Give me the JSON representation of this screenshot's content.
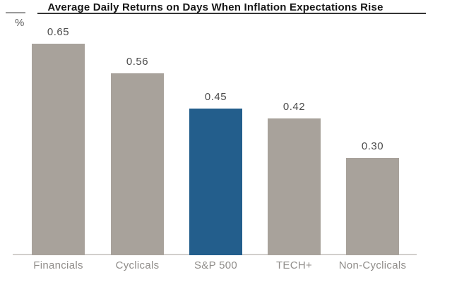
{
  "chart_data": {
    "type": "bar",
    "title": "Average Daily Returns on Days When Inflation Expectations Rise",
    "categories": [
      "Financials",
      "Cyclicals",
      "S&P 500",
      "TECH+",
      "Non-Cyclicals"
    ],
    "values": [
      0.65,
      0.56,
      0.45,
      0.42,
      0.3
    ],
    "value_labels": [
      "0.65",
      "0.56",
      "0.45",
      "0.42",
      "0.30"
    ],
    "xlabel": "",
    "ylabel": "%",
    "ylim": [
      0,
      0.8
    ],
    "grid": false,
    "legend": false,
    "bar_colors": [
      "#a8a29b",
      "#a8a29b",
      "#235e8c",
      "#a8a29b",
      "#a8a29b"
    ],
    "default_bar_color": "#a8a29b",
    "highlight_bar_color": "#235e8c",
    "highlight_category": "S&P 500"
  }
}
